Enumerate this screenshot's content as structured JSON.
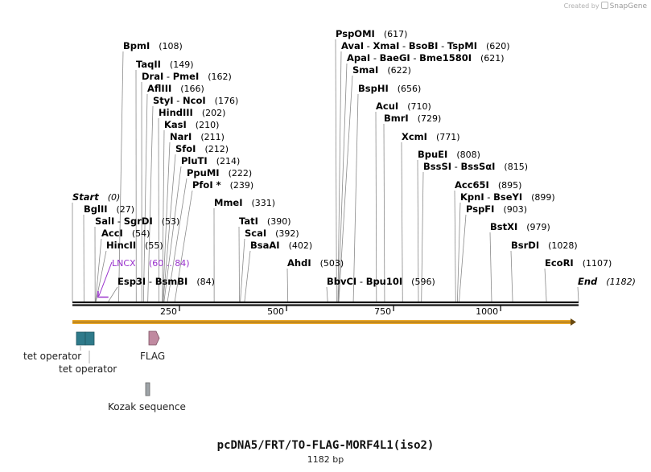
{
  "credit": {
    "prefix": "Created by",
    "brand": "SnapGene"
  },
  "map": {
    "name": "pcDNA5/FRT/TO-FLAG-MORF4L1(iso2)",
    "length_label": "1182 bp",
    "length": 1182
  },
  "colors": {
    "backbone": "#111111",
    "orf": "#e8a62a",
    "tet_operator": "#2e7a8a",
    "flag": "#c08aa0",
    "kozak": "#9ea4a8",
    "lncx": "#9932cc"
  },
  "ticks": [
    {
      "value": 250,
      "label": "250"
    },
    {
      "value": 500,
      "label": "500"
    },
    {
      "value": 750,
      "label": "750"
    },
    {
      "value": 1000,
      "label": "1000"
    }
  ],
  "enzymes": [
    {
      "name": "BpmI",
      "pos": "(108)",
      "cut": 108
    },
    {
      "name": "TaqII",
      "pos": "(149)",
      "cut": 149
    },
    {
      "name": "DraI - PmeI",
      "pos": "(162)",
      "cut": 162
    },
    {
      "name": "AflIII",
      "pos": "(166)",
      "cut": 166
    },
    {
      "name": "StyI - NcoI",
      "pos": "(176)",
      "cut": 176
    },
    {
      "name": "HindIII",
      "pos": "(202)",
      "cut": 202
    },
    {
      "name": "KasI",
      "pos": "(210)",
      "cut": 210
    },
    {
      "name": "NarI",
      "pos": "(211)",
      "cut": 211
    },
    {
      "name": "SfoI",
      "pos": "(212)",
      "cut": 212
    },
    {
      "name": "PluTI",
      "pos": "(214)",
      "cut": 214
    },
    {
      "name": "PpuMI",
      "pos": "(222)",
      "cut": 222
    },
    {
      "name": "PfoI *",
      "pos": "(239)",
      "cut": 239
    },
    {
      "name": "Start",
      "pos": "(0)",
      "cut": 0,
      "italic": true
    },
    {
      "name": "BglII",
      "pos": "(27)",
      "cut": 27
    },
    {
      "name": "SalI - SgrDI",
      "pos": "(53)",
      "cut": 53
    },
    {
      "name": "AccI",
      "pos": "(54)",
      "cut": 54
    },
    {
      "name": "HincII",
      "pos": "(55)",
      "cut": 55
    },
    {
      "name": "Esp3I - BsmBI",
      "pos": "(84)",
      "cut": 84
    },
    {
      "name": "MmeI",
      "pos": "(331)",
      "cut": 331
    },
    {
      "name": "TatI",
      "pos": "(390)",
      "cut": 390
    },
    {
      "name": "ScaI",
      "pos": "(392)",
      "cut": 392
    },
    {
      "name": "BsaAI",
      "pos": "(402)",
      "cut": 402
    },
    {
      "name": "AhdI",
      "pos": "(503)",
      "cut": 503
    },
    {
      "name": "PspOMI",
      "pos": "(617)",
      "cut": 617
    },
    {
      "name": "AvaI - XmaI - BsoBI - TspMI",
      "pos": "(620)",
      "cut": 620
    },
    {
      "name": "ApaI - BaeGI - Bme1580I",
      "pos": "(621)",
      "cut": 621
    },
    {
      "name": "SmaI",
      "pos": "(622)",
      "cut": 622
    },
    {
      "name": "BspHI",
      "pos": "(656)",
      "cut": 656
    },
    {
      "name": "BbvCI - Bpu10I",
      "pos": "(596)",
      "cut": 596
    },
    {
      "name": "AcuI",
      "pos": "(710)",
      "cut": 710
    },
    {
      "name": "BmrI",
      "pos": "(729)",
      "cut": 729
    },
    {
      "name": "XcmI",
      "pos": "(771)",
      "cut": 771
    },
    {
      "name": "BpuEI",
      "pos": "(808)",
      "cut": 808
    },
    {
      "name": "BssSI - BssSαI",
      "pos": "(815)",
      "cut": 815
    },
    {
      "name": "Acc65I",
      "pos": "(895)",
      "cut": 895
    },
    {
      "name": "KpnI - BseYI",
      "pos": "(899)",
      "cut": 899
    },
    {
      "name": "PspFI",
      "pos": "(903)",
      "cut": 903
    },
    {
      "name": "BstXI",
      "pos": "(979)",
      "cut": 979
    },
    {
      "name": "BsrDI",
      "pos": "(1028)",
      "cut": 1028
    },
    {
      "name": "EcoRI",
      "pos": "(1107)",
      "cut": 1107
    },
    {
      "name": "End",
      "pos": "(1182)",
      "cut": 1182,
      "italic": true
    }
  ],
  "primer": {
    "name": "LNCX",
    "pos": "(60 .. 84)",
    "start": 60,
    "end": 84
  },
  "features": [
    {
      "name": "tet operator",
      "start": 10,
      "end": 28
    },
    {
      "name": "tet operator",
      "start": 31,
      "end": 49
    },
    {
      "name": "FLAG",
      "start": 180,
      "end": 204
    },
    {
      "name": "Kozak sequence",
      "start": 172,
      "end": 181
    }
  ]
}
